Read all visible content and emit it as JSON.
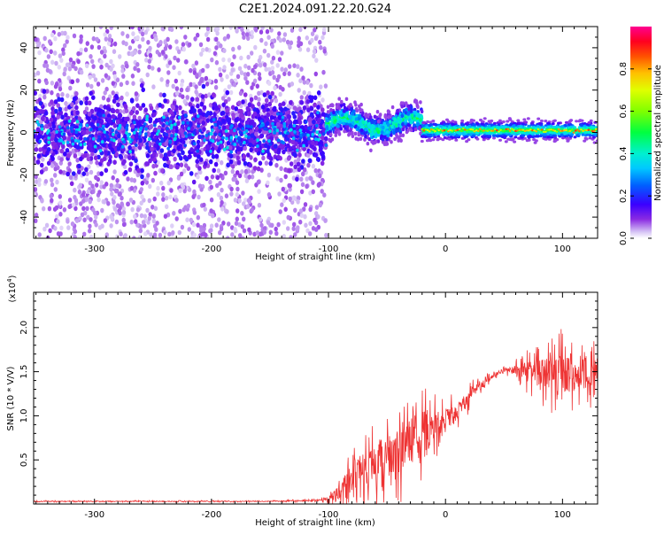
{
  "title": "C2E1.2024.091.22.20.G24",
  "chart_data": [
    {
      "type": "heatmap",
      "xlabel": "Height of straight line (km)",
      "ylabel": "Frequency (Hz)",
      "xlim": [
        -352,
        130
      ],
      "ylim": [
        -50,
        50
      ],
      "xticks": [
        -300,
        -200,
        -100,
        0,
        100
      ],
      "yticks": [
        -40,
        -20,
        0,
        20,
        40
      ],
      "grid": false,
      "colorbar": {
        "label": "Normalized spectral amplitude",
        "range": [
          0,
          1
        ],
        "ticks": [
          "0.0",
          "0.2",
          "0.4",
          "0.6",
          "0.8"
        ],
        "colormap": [
          "#ffffff",
          "#8a2be2",
          "#3a00ff",
          "#0080ff",
          "#00e5ff",
          "#00ff60",
          "#b4ff00",
          "#ffff00",
          "#ff8000",
          "#ff0000",
          "#ff007f"
        ]
      },
      "regions": [
        {
          "x_range": [
            -352,
            -102
          ],
          "frequency_spread_hz": [
            -50,
            50
          ],
          "core_band_hz": [
            -12,
            12
          ],
          "peak_amplitude": 0.3
        },
        {
          "x_range": [
            -102,
            -20
          ],
          "center_frequency_hz": 4,
          "band_halfwidth_hz": 5,
          "peak_amplitude": 0.55
        },
        {
          "x_range": [
            -20,
            130
          ],
          "center_frequency_hz": 1,
          "band_halfwidth_hz": 3,
          "peak_amplitude": 0.9
        }
      ]
    },
    {
      "type": "line",
      "xlabel": "Height of straight line (km)",
      "ylabel": "SNR (10 * V/V)",
      "y_multiplier_label": "(x10",
      "y_multiplier_exponent": "4",
      "y_multiplier_close": ")",
      "xlim": [
        -352,
        130
      ],
      "ylim": [
        0,
        2.4
      ],
      "xticks": [
        -300,
        -200,
        -100,
        0,
        100
      ],
      "yticks": [
        "0.5",
        "1.0",
        "1.5",
        "2.0"
      ],
      "grid": false,
      "color": "#ee3333",
      "series": [
        {
          "x": [
            -350,
            -300,
            -250,
            -200,
            -150,
            -110,
            -100,
            -90,
            -80,
            -70,
            -60,
            -50,
            -40,
            -30,
            -20,
            -10,
            0,
            10,
            20,
            30,
            40,
            50,
            60,
            70,
            80,
            90,
            100,
            110,
            120,
            128
          ],
          "y": [
            0.03,
            0.03,
            0.03,
            0.03,
            0.03,
            0.04,
            0.06,
            0.15,
            0.3,
            0.4,
            0.45,
            0.55,
            0.6,
            0.7,
            0.8,
            0.88,
            0.95,
            1.05,
            1.2,
            1.35,
            1.45,
            1.52,
            1.52,
            1.5,
            1.5,
            1.48,
            1.5,
            1.45,
            1.45,
            1.45
          ],
          "noise_amplitude": [
            0.01,
            0.01,
            0.01,
            0.01,
            0.01,
            0.02,
            0.05,
            0.2,
            0.35,
            0.45,
            0.5,
            0.55,
            0.6,
            0.6,
            0.55,
            0.4,
            0.3,
            0.22,
            0.18,
            0.12,
            0.06,
            0.05,
            0.12,
            0.25,
            0.35,
            0.45,
            0.5,
            0.4,
            0.4,
            0.4
          ]
        }
      ]
    }
  ]
}
